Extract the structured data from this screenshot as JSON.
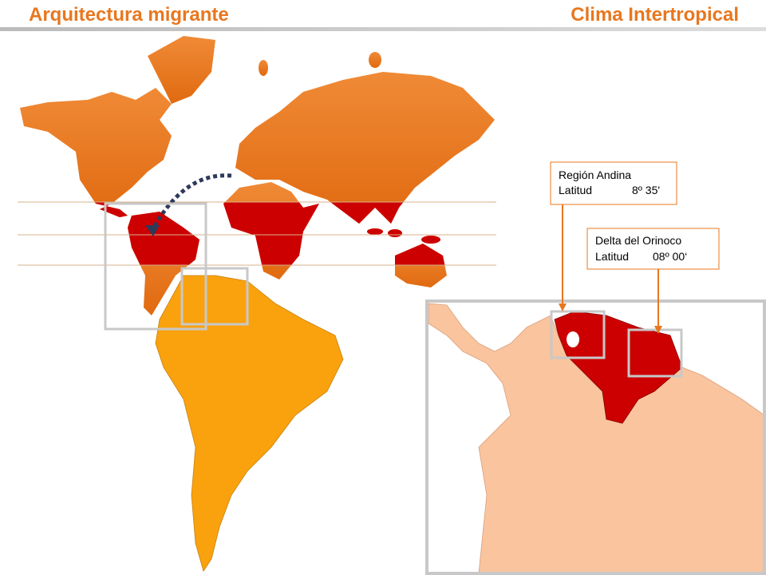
{
  "header": {
    "left_title": "Arquitectura migrante",
    "right_title": "Clima Intertropical"
  },
  "callouts": [
    {
      "title": "Región Andina",
      "label": "Latitud",
      "value": "8º 35'"
    },
    {
      "title": "Delta del Orinoco",
      "label": "Latitud",
      "value": "08º 00‘"
    }
  ]
}
